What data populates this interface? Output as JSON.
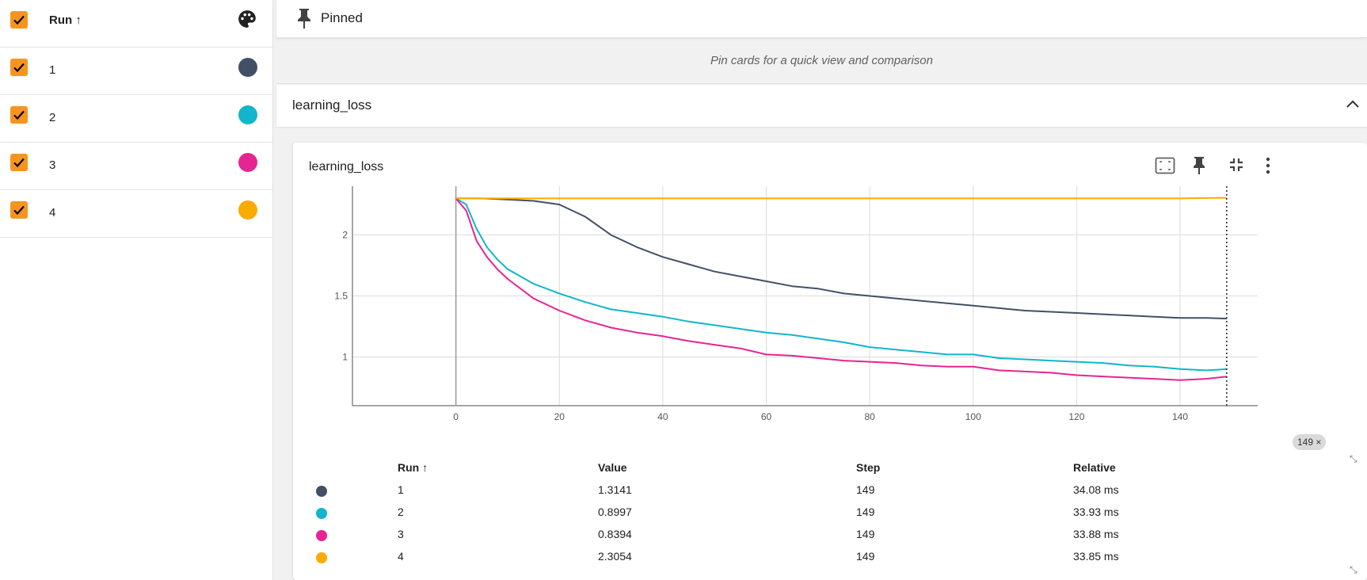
{
  "runs_panel": {
    "header_label": "Run ↑",
    "runs": [
      {
        "label": "1",
        "color": "#425066"
      },
      {
        "label": "2",
        "color": "#12b5cb"
      },
      {
        "label": "3",
        "color": "#e52592"
      },
      {
        "label": "4",
        "color": "#f9ab00"
      }
    ]
  },
  "pinned": {
    "title": "Pinned",
    "hint": "Pin cards for a quick view and comparison"
  },
  "group": {
    "title": "learning_loss"
  },
  "card": {
    "title": "learning_loss",
    "step_chip": "149 ×"
  },
  "chart_data": {
    "type": "line",
    "title": "learning_loss",
    "xlabel": "",
    "ylabel": "",
    "xlim": [
      -20,
      155
    ],
    "ylim": [
      0.6,
      2.4
    ],
    "x_ticks": [
      "0",
      "20",
      "40",
      "60",
      "80",
      "100",
      "120",
      "140"
    ],
    "y_ticks": [
      "1",
      "1.5",
      "2"
    ],
    "series": [
      {
        "name": "1",
        "color": "#425066",
        "x": [
          0,
          5,
          10,
          15,
          20,
          25,
          30,
          35,
          40,
          45,
          50,
          55,
          60,
          65,
          70,
          75,
          80,
          85,
          90,
          95,
          100,
          105,
          110,
          115,
          120,
          125,
          130,
          135,
          140,
          145,
          149
        ],
        "y": [
          2.3,
          2.3,
          2.29,
          2.28,
          2.25,
          2.15,
          2.0,
          1.9,
          1.82,
          1.76,
          1.7,
          1.66,
          1.62,
          1.58,
          1.56,
          1.52,
          1.5,
          1.48,
          1.46,
          1.44,
          1.42,
          1.4,
          1.38,
          1.37,
          1.36,
          1.35,
          1.34,
          1.33,
          1.32,
          1.32,
          1.3141
        ]
      },
      {
        "name": "2",
        "color": "#12b5cb",
        "x": [
          0,
          2,
          4,
          6,
          8,
          10,
          15,
          20,
          25,
          30,
          35,
          40,
          45,
          50,
          55,
          60,
          65,
          70,
          75,
          80,
          85,
          90,
          95,
          100,
          105,
          110,
          115,
          120,
          125,
          130,
          135,
          140,
          145,
          149
        ],
        "y": [
          2.3,
          2.25,
          2.05,
          1.9,
          1.8,
          1.72,
          1.6,
          1.52,
          1.45,
          1.39,
          1.36,
          1.33,
          1.29,
          1.26,
          1.23,
          1.2,
          1.18,
          1.15,
          1.12,
          1.08,
          1.06,
          1.04,
          1.02,
          1.02,
          0.99,
          0.98,
          0.97,
          0.96,
          0.95,
          0.93,
          0.92,
          0.9,
          0.89,
          0.8997
        ]
      },
      {
        "name": "3",
        "color": "#e52592",
        "x": [
          0,
          2,
          4,
          6,
          8,
          10,
          15,
          20,
          25,
          30,
          35,
          40,
          45,
          50,
          55,
          60,
          65,
          70,
          75,
          80,
          85,
          90,
          95,
          100,
          105,
          110,
          115,
          120,
          125,
          130,
          135,
          140,
          145,
          149
        ],
        "y": [
          2.3,
          2.2,
          1.95,
          1.82,
          1.72,
          1.64,
          1.48,
          1.38,
          1.3,
          1.24,
          1.2,
          1.17,
          1.13,
          1.1,
          1.07,
          1.02,
          1.01,
          0.99,
          0.97,
          0.96,
          0.95,
          0.93,
          0.92,
          0.92,
          0.89,
          0.88,
          0.87,
          0.85,
          0.84,
          0.83,
          0.82,
          0.81,
          0.82,
          0.8394
        ]
      },
      {
        "name": "4",
        "color": "#f9ab00",
        "x": [
          0,
          20,
          40,
          60,
          80,
          100,
          120,
          140,
          149
        ],
        "y": [
          2.3,
          2.3,
          2.3,
          2.3,
          2.3,
          2.3,
          2.3,
          2.3,
          2.3054
        ]
      }
    ]
  },
  "legend": {
    "headers": {
      "run": "Run ↑",
      "value": "Value",
      "step": "Step",
      "relative": "Relative"
    },
    "rows": [
      {
        "run": "1",
        "value": "1.3141",
        "step": "149",
        "relative": "34.08 ms",
        "color": "#425066"
      },
      {
        "run": "2",
        "value": "0.8997",
        "step": "149",
        "relative": "33.93 ms",
        "color": "#12b5cb"
      },
      {
        "run": "3",
        "value": "0.8394",
        "step": "149",
        "relative": "33.88 ms",
        "color": "#e52592"
      },
      {
        "run": "4",
        "value": "2.3054",
        "step": "149",
        "relative": "33.85 ms",
        "color": "#f9ab00"
      }
    ]
  }
}
